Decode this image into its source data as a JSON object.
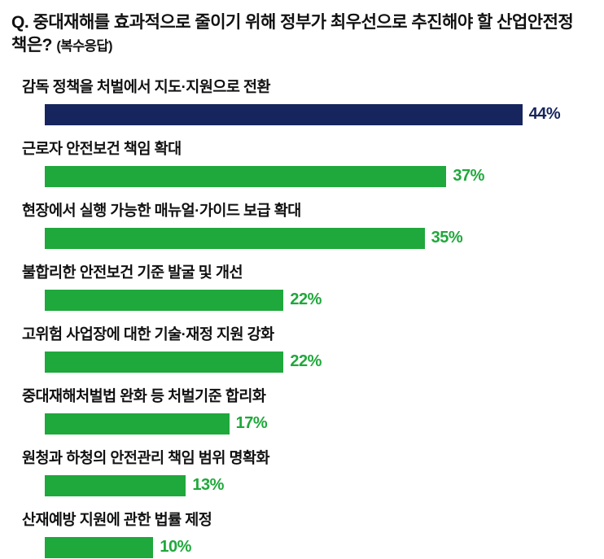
{
  "header": {
    "title": "Q. 중대재해를 효과적으로 줄이기 위해 정부가 최우선으로 추진해야 할 산업안전정책은?",
    "subtitle": "(복수응답)"
  },
  "chart_data": {
    "type": "bar",
    "orientation": "horizontal",
    "title": "Q. 중대재해를 효과적으로 줄이기 위해 정부가 최우선으로 추진해야 할 산업안전정책은?",
    "subtitle": "(복수응답)",
    "categories": [
      "감독 정책을 처벌에서 지도·지원으로 전환",
      "근로자 안전보건 책임 확대",
      "현장에서 실행 가능한 매뉴얼·가이드 보급 확대",
      "불합리한 안전보건 기준 발굴 및 개선",
      "고위험 사업장에 대한 기술·재정 지원 강화",
      "중대재해처벌법 완화 등 처벌기준 합리화",
      "원청과 하청의 안전관리 책임 범위 명확화",
      "산재예방 지원에 관한 법률 제정"
    ],
    "values": [
      44,
      37,
      35,
      22,
      22,
      17,
      13,
      10
    ],
    "unit": "%",
    "xlim": [
      0,
      48
    ],
    "grid": false,
    "legend": "none",
    "value_labels": "end-of-bar",
    "colors": {
      "highlight": "#16255e",
      "default": "#1fa83b"
    },
    "highlight_index": 0
  }
}
